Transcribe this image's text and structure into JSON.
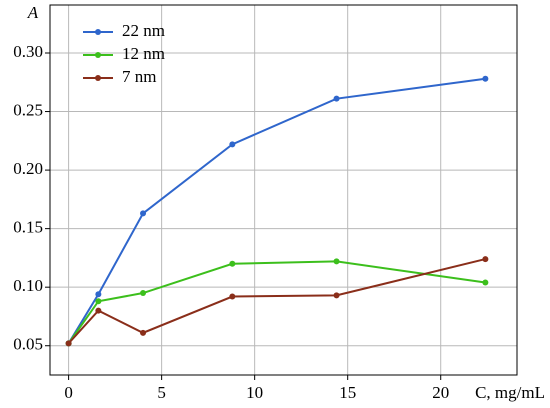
{
  "chart_data": {
    "type": "line",
    "x_label": "C, mg/mL",
    "y_label": "A",
    "x": [
      0,
      1.6,
      4,
      8.8,
      14.4,
      22.4
    ],
    "series": [
      {
        "name": "22 nm",
        "color": "#2f66cc",
        "values": [
          0.052,
          0.094,
          0.163,
          0.222,
          0.261,
          0.278
        ]
      },
      {
        "name": "12 nm",
        "color": "#3cbf1c",
        "values": [
          0.052,
          0.088,
          0.095,
          0.12,
          0.122,
          0.104
        ]
      },
      {
        "name": "7 nm",
        "color": "#8a2e1a",
        "values": [
          0.052,
          0.08,
          0.061,
          0.092,
          0.093,
          0.124
        ]
      }
    ],
    "xlim": [
      -1,
      24.1
    ],
    "ylim": [
      0.025,
      0.341
    ],
    "xticks": [
      0,
      5,
      10,
      15,
      20
    ],
    "yticks": [
      0.05,
      {
        "value": 0.1,
        "label": "0.10"
      },
      0.15,
      {
        "value": 0.2,
        "label": "0.20"
      },
      0.25,
      {
        "value": 0.3,
        "label": "0.30"
      }
    ],
    "grid": true,
    "legend": "top-left"
  }
}
